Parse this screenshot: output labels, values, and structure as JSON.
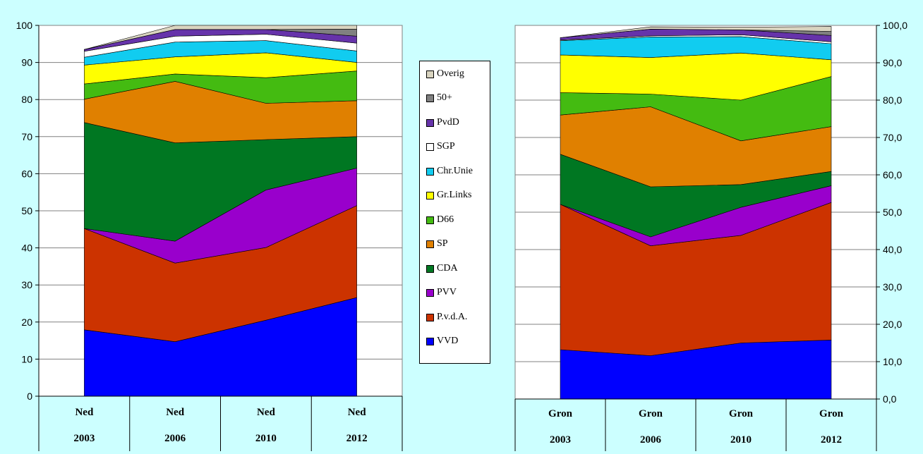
{
  "chart_data": [
    {
      "type": "area",
      "stacked": true,
      "y_axis": "left",
      "ylim": [
        0,
        100
      ],
      "yticks": [
        "0",
        "10",
        "20",
        "30",
        "40",
        "50",
        "60",
        "70",
        "80",
        "90",
        "100"
      ],
      "categories": [
        [
          "Ned",
          "2003"
        ],
        [
          "Ned",
          "2006"
        ],
        [
          "Ned",
          "2010"
        ],
        [
          "Ned",
          "2012"
        ]
      ],
      "series": [
        {
          "name": "VVD",
          "values": [
            17.9,
            14.7,
            20.5,
            26.6
          ]
        },
        {
          "name": "P.v.d.A.",
          "values": [
            27.3,
            21.2,
            19.6,
            24.8
          ]
        },
        {
          "name": "PVV",
          "values": [
            0,
            5.9,
            15.5,
            10.1
          ]
        },
        {
          "name": "CDA",
          "values": [
            28.6,
            26.5,
            13.6,
            8.5
          ]
        },
        {
          "name": "SP",
          "values": [
            6.3,
            16.6,
            9.8,
            9.7
          ]
        },
        {
          "name": "D66",
          "values": [
            4.1,
            2.0,
            6.9,
            8.0
          ]
        },
        {
          "name": "Gr.Links",
          "values": [
            5.1,
            4.6,
            6.7,
            2.3
          ]
        },
        {
          "name": "Chr.Unie",
          "values": [
            2.1,
            4.0,
            3.3,
            3.1
          ]
        },
        {
          "name": "SGP",
          "values": [
            1.6,
            1.6,
            1.7,
            2.1
          ]
        },
        {
          "name": "PvdD",
          "values": [
            0.5,
            1.8,
            1.3,
            1.9
          ]
        },
        {
          "name": "50+",
          "values": [
            0,
            0,
            0,
            1.9
          ]
        },
        {
          "name": "Overig",
          "values": [
            0,
            1.1,
            1.1,
            1.0
          ]
        }
      ]
    },
    {
      "type": "area",
      "stacked": true,
      "y_axis": "right",
      "ylim": [
        0,
        100
      ],
      "yticks": [
        "0,0",
        "10,0",
        "20,0",
        "30,0",
        "40,0",
        "50,0",
        "60,0",
        "70,0",
        "80,0",
        "90,0",
        "100,0"
      ],
      "categories": [
        [
          "Gron",
          "2003"
        ],
        [
          "Gron",
          "2006"
        ],
        [
          "Gron",
          "2010"
        ],
        [
          "Gron",
          "2012"
        ]
      ],
      "series": [
        {
          "name": "VVD",
          "values": [
            13.2,
            11.6,
            15.0,
            15.8
          ]
        },
        {
          "name": "P.v.d.A.",
          "values": [
            38.9,
            29.4,
            28.8,
            36.8
          ]
        },
        {
          "name": "PVV",
          "values": [
            0,
            2.4,
            7.5,
            4.5
          ]
        },
        {
          "name": "CDA",
          "values": [
            13.4,
            13.4,
            6.1,
            3.8
          ]
        },
        {
          "name": "SP",
          "values": [
            10.5,
            21.4,
            11.7,
            12.0
          ]
        },
        {
          "name": "D66",
          "values": [
            6.0,
            3.4,
            10.9,
            13.4
          ]
        },
        {
          "name": "Gr.Links",
          "values": [
            10.1,
            9.8,
            12.6,
            4.5
          ]
        },
        {
          "name": "Chr.Unie",
          "values": [
            3.8,
            5.5,
            4.4,
            4.3
          ]
        },
        {
          "name": "SGP",
          "values": [
            0.2,
            0.3,
            0.5,
            0.5
          ]
        },
        {
          "name": "PvdD",
          "values": [
            0.6,
            1.8,
            1.3,
            1.7
          ]
        },
        {
          "name": "50+",
          "values": [
            0,
            0,
            0,
            1.1
          ]
        },
        {
          "name": "Overig",
          "values": [
            0,
            0.6,
            0.7,
            1.3
          ]
        }
      ]
    }
  ],
  "legend": {
    "items": [
      {
        "label": "Overig",
        "color": "#d9d4c0"
      },
      {
        "label": "50+",
        "color": "#808080"
      },
      {
        "label": "PvdD",
        "color": "#6633aa"
      },
      {
        "label": "SGP",
        "color": "#ffffff"
      },
      {
        "label": "Chr.Unie",
        "color": "#11ccf0"
      },
      {
        "label": "Gr.Links",
        "color": "#ffff00"
      },
      {
        "label": "D66",
        "color": "#44bb11"
      },
      {
        "label": "SP",
        "color": "#e08000"
      },
      {
        "label": "CDA",
        "color": "#007722"
      },
      {
        "label": "PVV",
        "color": "#9900cc"
      },
      {
        "label": "P.v.d.A.",
        "color": "#cc3300"
      },
      {
        "label": "VVD",
        "color": "#0000ff"
      }
    ]
  }
}
